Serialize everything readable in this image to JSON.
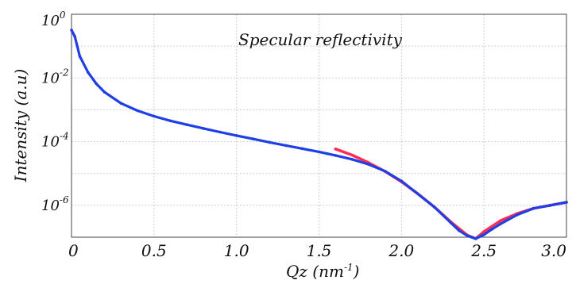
{
  "chart_data": {
    "type": "line",
    "title": "",
    "annotation": "Specular reflectivity",
    "xlabel": "Qz (nm",
    "xlabel_sup": "-1",
    "xlabel_end": ")",
    "ylabel": "Intensity (a.u)",
    "xlim": [
      0,
      3.0
    ],
    "ylim_log10": [
      -7,
      0
    ],
    "yscale": "log",
    "grid": true,
    "x_ticks": [
      "0",
      "0.5",
      "1.0",
      "1.5",
      "2.0",
      "2.5",
      "3.0"
    ],
    "y_ticks": [
      {
        "base": "10",
        "exp": "0"
      },
      {
        "base": "10",
        "exp": "-2"
      },
      {
        "base": "10",
        "exp": "-4"
      },
      {
        "base": "10",
        "exp": "-6"
      }
    ],
    "series": [
      {
        "color": "#ff2d55",
        "x": [
          1.6,
          1.7,
          1.8,
          1.9,
          2.0,
          2.1,
          2.2,
          2.3,
          2.4,
          2.45,
          2.5,
          2.6,
          2.7,
          2.8,
          2.9,
          3.0
        ],
        "y": [
          5.9e-05,
          3.8e-05,
          2.2e-05,
          1.17e-05,
          5.5e-06,
          2.3e-06,
          8.8e-07,
          3e-07,
          1.15e-07,
          9e-08,
          1.5e-07,
          3.3e-07,
          5.5e-07,
          8e-07,
          1e-06,
          1.25e-06
        ]
      },
      {
        "color": "#1f3fe6",
        "x": [
          0.0,
          0.02,
          0.05,
          0.1,
          0.15,
          0.2,
          0.3,
          0.4,
          0.5,
          0.6,
          0.7,
          0.8,
          0.9,
          1.0,
          1.1,
          1.2,
          1.3,
          1.4,
          1.5,
          1.55,
          1.6,
          1.7,
          1.8,
          1.9,
          2.0,
          2.2,
          2.3,
          2.35,
          2.4,
          2.45,
          2.5,
          2.55,
          2.6,
          2.7,
          2.8,
          2.9,
          3.0
        ],
        "y": [
          0.32,
          0.2,
          0.048,
          0.015,
          0.0066,
          0.0036,
          0.0016,
          0.00094,
          0.00063,
          0.00045,
          0.00034,
          0.00026,
          0.0002,
          0.000155,
          0.000122,
          9.55e-05,
          7.6e-05,
          6.03e-05,
          4.79e-05,
          4.2e-05,
          3.7e-05,
          2.8e-05,
          1.95e-05,
          1.18e-05,
          5.8e-06,
          8.8e-07,
          2.8e-07,
          1.6e-07,
          1.1e-07,
          9e-08,
          1.2e-07,
          1.8e-07,
          2.6e-07,
          5e-07,
          8e-07,
          1e-06,
          1.25e-06
        ]
      }
    ]
  }
}
